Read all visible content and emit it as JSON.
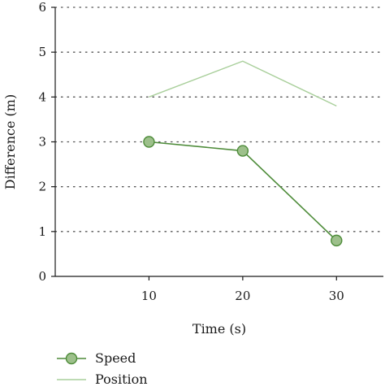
{
  "chart_data": {
    "type": "line",
    "xlabel": "Time (s)",
    "ylabel": "Difference (m)",
    "x": [
      10,
      20,
      30
    ],
    "xlim": [
      0,
      35
    ],
    "ylim": [
      0,
      6
    ],
    "x_ticks": [
      10,
      20,
      30
    ],
    "y_ticks": [
      0,
      1,
      2,
      3,
      4,
      5,
      6
    ],
    "grid": "horizontal-dotted",
    "legend_position": "bottom-left",
    "series": [
      {
        "name": "Speed",
        "values": [
          3.0,
          2.8,
          0.8
        ],
        "color": "#4e8c3a",
        "marker_fill": "#9dc08b",
        "markers": true
      },
      {
        "name": "Position",
        "values": [
          4.0,
          4.8,
          3.8
        ],
        "color": "#a9cf9b",
        "markers": false
      }
    ]
  }
}
